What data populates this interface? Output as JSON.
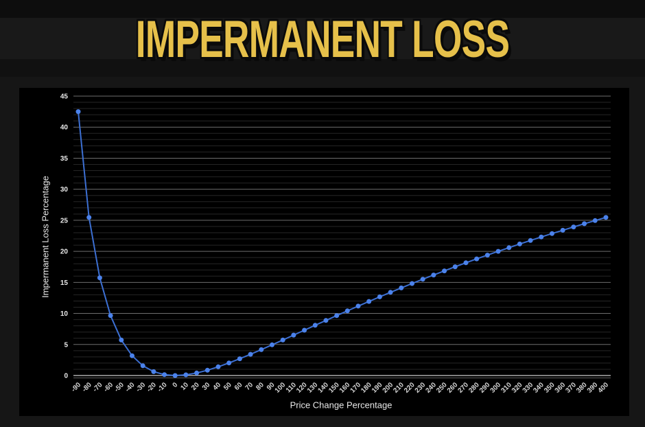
{
  "page": {
    "title": "IMPERMANENT LOSS"
  },
  "chart_data": {
    "type": "line",
    "title": "IMPERMANENT LOSS",
    "xlabel": "Price Change Percentage",
    "ylabel": "Impermanent Loss Percentage",
    "x": [
      -90,
      -80,
      -70,
      -60,
      -50,
      -40,
      -30,
      -20,
      -10,
      0,
      10,
      20,
      30,
      40,
      50,
      60,
      70,
      80,
      90,
      100,
      110,
      120,
      130,
      140,
      150,
      160,
      170,
      180,
      190,
      200,
      210,
      220,
      230,
      240,
      250,
      260,
      270,
      280,
      290,
      300,
      310,
      320,
      330,
      340,
      350,
      360,
      370,
      380,
      390,
      400
    ],
    "series": [
      {
        "name": "Impermanent Loss Percentage",
        "values": [
          42.5,
          25.46,
          15.73,
          9.65,
          5.72,
          3.18,
          1.57,
          0.62,
          0.14,
          0,
          0.11,
          0.41,
          0.85,
          1.4,
          2.02,
          2.7,
          3.42,
          4.17,
          4.94,
          5.72,
          6.51,
          7.3,
          8.09,
          8.87,
          9.65,
          10.42,
          11.18,
          11.93,
          12.67,
          13.4,
          14.11,
          14.82,
          15.51,
          16.19,
          16.85,
          17.51,
          18.15,
          18.78,
          19.39,
          20,
          20.59,
          21.18,
          21.75,
          22.31,
          22.86,
          23.4,
          23.93,
          24.45,
          24.96,
          25.46
        ]
      }
    ],
    "ylim": [
      0,
      45
    ],
    "y_major_ticks": [
      0,
      5,
      10,
      15,
      20,
      25,
      30,
      35,
      40,
      45
    ],
    "y_minor_step": 1,
    "grid": "horizontal",
    "legend": "none",
    "marker": "circle",
    "colors": {
      "line": "#3c6fd2",
      "marker": "#4b82eb",
      "grid_major": "#6e6e6e",
      "grid_minor": "#262626",
      "axis_baseline": "#aaaaaa",
      "axis_secondary": "#5c5c5c",
      "y_tick_label": "#ebebeb",
      "x_tick_label": "#d6d6d6",
      "axis_title": "#e9e9e9",
      "title": "#e6c04a",
      "panel_bg": "#000000",
      "page_bg": "#161616",
      "top_strip_bg": "#0d0d0d",
      "title_band_bg": "#191919"
    }
  }
}
